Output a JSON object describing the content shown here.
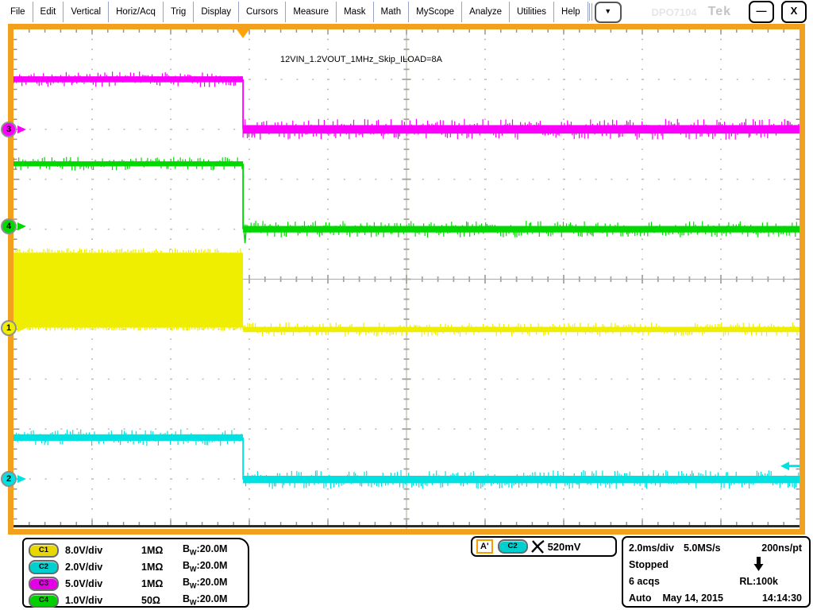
{
  "menu": {
    "items": [
      "File",
      "Edit",
      "Vertical",
      "Horiz/Acq",
      "Trig",
      "Display",
      "Cursors",
      "Measure",
      "Mask",
      "Math",
      "MyScope",
      "Analyze",
      "Utilities",
      "Help"
    ],
    "more_label": "▼"
  },
  "window": {
    "model": "DPO7104",
    "logo": "Tek",
    "minimize": "—",
    "close": "X"
  },
  "annotation": "12VIN_1.2VOUT_1MHz_Skip_ILOAD=8A",
  "labels": {
    "bw_b": "B",
    "bw_w": "W"
  },
  "readouts": {
    "channels": [
      {
        "badge": "C1",
        "scale": "8.0V/div",
        "impedance": "1MΩ",
        "bw": ":20.0M"
      },
      {
        "badge": "C2",
        "scale": "2.0V/div",
        "impedance": "1MΩ",
        "bw": ":20.0M"
      },
      {
        "badge": "C3",
        "scale": "5.0V/div",
        "impedance": "1MΩ",
        "bw": ":20.0M"
      },
      {
        "badge": "C4",
        "scale": "1.0V/div",
        "impedance": "50Ω",
        "bw": ":20.0M"
      }
    ],
    "trigger": {
      "source": "A'",
      "channel_badge": "C2",
      "level": "520mV"
    },
    "horizontal": {
      "scale": "2.0ms/div",
      "sample_rate": "5.0MS/s",
      "resolution": "200ns/pt",
      "status": "Stopped",
      "acquisitions": "6 acqs",
      "record_length": "RL:100k",
      "trigger_mode": "Auto",
      "date": "May 14, 2015",
      "time": "14:14:30"
    }
  },
  "colors": {
    "border": "#f2a01d",
    "trigger_marker": "#ffa300",
    "c1": "#f0ee00",
    "c2": "#00e2e2",
    "c3": "#fb00fb",
    "c4": "#00d800",
    "graticule_dots": "#c2beb2",
    "center_lines": "#aeaa9e"
  },
  "chart_data": {
    "type": "line",
    "instrument": "oscilloscope-capture",
    "title": "12VIN_1.2VOUT_1MHz_Skip_ILOAD=8A",
    "horizontal": {
      "time_per_div": "2.0ms/div",
      "divisions": 10,
      "trigger_position_div": 2.92
    },
    "vertical_divisions": 10,
    "description": "All four signals step low at the trigger point (load release): C3 5V rail, C4 1.2V output, C1 12V switch-node burst stops, C2 load signal drops",
    "series": [
      {
        "name": "C1",
        "label": "1",
        "color": "#f0ee00",
        "volts_per_div": 8.0,
        "baseline_div": 5.97,
        "pre": {
          "type": "square_band",
          "high_V": 12.0,
          "low_V": 0.0,
          "edge_noise_V": 0.75
        },
        "post": {
          "level_V": -0.3,
          "noise_pp_V": 0.85
        }
      },
      {
        "name": "C2",
        "label": "2",
        "color": "#00e2e2",
        "volts_per_div": 2.0,
        "baseline_div": 9.0,
        "pre": {
          "level_V": 1.66,
          "noise_pp_V": 0.26
        },
        "post": {
          "level_V": -0.02,
          "noise_pp_V": 0.3
        }
      },
      {
        "name": "C3",
        "label": "3",
        "color": "#fb00fb",
        "volts_per_div": 5.0,
        "baseline_div": 2.0,
        "pre": {
          "level_V": 5.0,
          "noise_pp_V": 0.6
        },
        "post": {
          "level_V": 0.0,
          "noise_pp_V": 0.85
        }
      },
      {
        "name": "C4",
        "label": "4",
        "color": "#00d800",
        "volts_per_div": 1.0,
        "baseline_div": 3.95,
        "pre": {
          "level_V": 1.26,
          "noise_pp_V": 0.1
        },
        "post": {
          "level_V": -0.05,
          "noise_pp_V": 0.13,
          "undershoot_V": -0.33
        }
      }
    ],
    "trigger_level": {
      "channel": "C2",
      "level_V": 0.52
    }
  }
}
